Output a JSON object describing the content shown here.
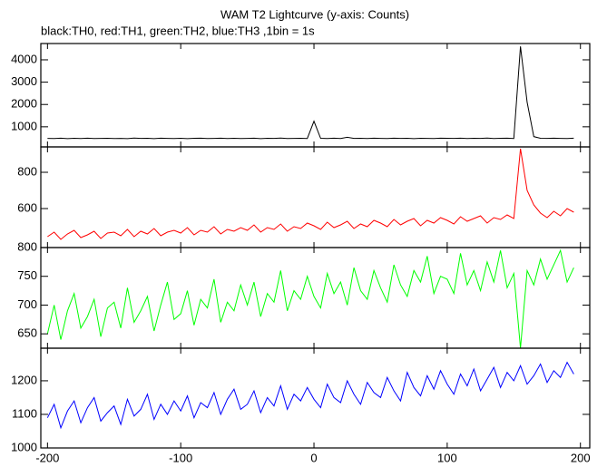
{
  "chart_data": [
    {
      "type": "line",
      "title": "WAM T2 Lightcurve (y-axis: Counts)",
      "subtitle": "black:TH0, red:TH1, green:TH2, blue:TH3 ,1bin = 1s",
      "x": [
        -200,
        -195,
        -190,
        -185,
        -180,
        -175,
        -170,
        -165,
        -160,
        -155,
        -150,
        -145,
        -140,
        -135,
        -130,
        -125,
        -120,
        -115,
        -110,
        -105,
        -100,
        -95,
        -90,
        -85,
        -80,
        -75,
        -70,
        -65,
        -60,
        -55,
        -50,
        -45,
        -40,
        -35,
        -30,
        -25,
        -20,
        -15,
        -10,
        -5,
        0,
        5,
        10,
        15,
        20,
        25,
        30,
        35,
        40,
        45,
        50,
        55,
        60,
        65,
        70,
        75,
        80,
        85,
        90,
        95,
        100,
        105,
        110,
        115,
        120,
        125,
        130,
        135,
        140,
        145,
        150,
        155,
        160,
        165,
        170,
        175,
        180,
        185,
        190,
        195
      ],
      "series": [
        {
          "color": "#000000",
          "values": [
            480,
            475,
            490,
            470,
            485,
            478,
            492,
            474,
            481,
            488,
            476,
            483,
            470,
            495,
            479,
            486,
            473,
            490,
            482,
            477,
            488,
            471,
            484,
            493,
            476,
            480,
            489,
            474,
            485,
            478,
            483,
            490,
            472,
            486,
            479,
            494,
            475,
            481,
            488,
            477,
            1250,
            484,
            478,
            491,
            476,
            530,
            482,
            487,
            475,
            490,
            481,
            476,
            493,
            479,
            486,
            472,
            488,
            483,
            477,
            492,
            485,
            479,
            490,
            474,
            487,
            481,
            495,
            478,
            484,
            489,
            476,
            4600,
            2100,
            560,
            488,
            479,
            492,
            483,
            476,
            490
          ]
        }
      ],
      "xlim": [
        -205,
        207
      ],
      "xticks": [
        -200,
        -100,
        0,
        100,
        200
      ],
      "ylim": [
        100,
        4730
      ],
      "yticks": [
        1000,
        2000,
        3000,
        4000
      ]
    },
    {
      "type": "line",
      "x": [
        -200,
        -195,
        -190,
        -185,
        -180,
        -175,
        -170,
        -165,
        -160,
        -155,
        -150,
        -145,
        -140,
        -135,
        -130,
        -125,
        -120,
        -115,
        -110,
        -105,
        -100,
        -95,
        -90,
        -85,
        -80,
        -75,
        -70,
        -65,
        -60,
        -55,
        -50,
        -45,
        -40,
        -35,
        -30,
        -25,
        -20,
        -15,
        -10,
        -5,
        0,
        5,
        10,
        15,
        20,
        25,
        30,
        35,
        40,
        45,
        50,
        55,
        60,
        65,
        70,
        75,
        80,
        85,
        90,
        95,
        100,
        105,
        110,
        115,
        120,
        125,
        130,
        135,
        140,
        145,
        150,
        155,
        160,
        165,
        170,
        175,
        180,
        185,
        190,
        195
      ],
      "series": [
        {
          "color": "#ff0000",
          "values": [
            445,
            470,
            430,
            460,
            480,
            440,
            455,
            475,
            435,
            465,
            470,
            450,
            485,
            445,
            475,
            460,
            490,
            450,
            470,
            480,
            465,
            495,
            455,
            480,
            470,
            500,
            460,
            485,
            475,
            495,
            480,
            510,
            470,
            495,
            485,
            515,
            475,
            500,
            490,
            520,
            505,
            485,
            525,
            495,
            510,
            530,
            490,
            515,
            500,
            535,
            520,
            500,
            540,
            510,
            530,
            545,
            505,
            535,
            520,
            550,
            535,
            515,
            555,
            530,
            545,
            560,
            520,
            550,
            540,
            565,
            545,
            930,
            700,
            620,
            575,
            550,
            585,
            560,
            600,
            580
          ]
        }
      ],
      "xlim": [
        -205,
        207
      ],
      "xticks": [
        -200,
        -100,
        0,
        100,
        200
      ],
      "ylim": [
        385,
        940
      ],
      "yticks": [
        600,
        800
      ]
    },
    {
      "type": "line",
      "x": [
        -200,
        -195,
        -190,
        -185,
        -180,
        -175,
        -170,
        -165,
        -160,
        -155,
        -150,
        -145,
        -140,
        -135,
        -130,
        -125,
        -120,
        -115,
        -110,
        -105,
        -100,
        -95,
        -90,
        -85,
        -80,
        -75,
        -70,
        -65,
        -60,
        -55,
        -50,
        -45,
        -40,
        -35,
        -30,
        -25,
        -20,
        -15,
        -10,
        -5,
        0,
        5,
        10,
        15,
        20,
        25,
        30,
        35,
        40,
        45,
        50,
        55,
        60,
        65,
        70,
        75,
        80,
        85,
        90,
        95,
        100,
        105,
        110,
        115,
        120,
        125,
        130,
        135,
        140,
        145,
        150,
        155,
        160,
        165,
        170,
        175,
        180,
        185,
        190,
        195
      ],
      "series": [
        {
          "color": "#00ff00",
          "values": [
            650,
            700,
            640,
            690,
            720,
            660,
            680,
            710,
            645,
            695,
            705,
            660,
            730,
            670,
            690,
            715,
            655,
            700,
            740,
            675,
            685,
            725,
            665,
            710,
            695,
            745,
            670,
            705,
            690,
            735,
            700,
            740,
            680,
            720,
            705,
            760,
            690,
            725,
            710,
            750,
            715,
            695,
            755,
            720,
            740,
            700,
            765,
            725,
            710,
            760,
            730,
            705,
            770,
            735,
            715,
            760,
            740,
            785,
            720,
            750,
            745,
            720,
            790,
            735,
            760,
            725,
            775,
            740,
            795,
            730,
            755,
            625,
            760,
            735,
            780,
            745,
            770,
            795,
            740,
            765
          ]
        }
      ],
      "xlim": [
        -205,
        207
      ],
      "xticks": [
        -200,
        -100,
        0,
        100,
        200
      ],
      "ylim": [
        625,
        800
      ],
      "yticks": [
        650,
        700,
        750,
        800
      ]
    },
    {
      "type": "line",
      "x": [
        -200,
        -195,
        -190,
        -185,
        -180,
        -175,
        -170,
        -165,
        -160,
        -155,
        -150,
        -145,
        -140,
        -135,
        -130,
        -125,
        -120,
        -115,
        -110,
        -105,
        -100,
        -95,
        -90,
        -85,
        -80,
        -75,
        -70,
        -65,
        -60,
        -55,
        -50,
        -45,
        -40,
        -35,
        -30,
        -25,
        -20,
        -15,
        -10,
        -5,
        0,
        5,
        10,
        15,
        20,
        25,
        30,
        35,
        40,
        45,
        50,
        55,
        60,
        65,
        70,
        75,
        80,
        85,
        90,
        95,
        100,
        105,
        110,
        115,
        120,
        125,
        130,
        135,
        140,
        145,
        150,
        155,
        160,
        165,
        170,
        175,
        180,
        185,
        190,
        195
      ],
      "series": [
        {
          "color": "#0000ff",
          "values": [
            1090,
            1130,
            1060,
            1110,
            1140,
            1075,
            1120,
            1150,
            1080,
            1105,
            1125,
            1070,
            1145,
            1095,
            1115,
            1160,
            1085,
            1130,
            1100,
            1140,
            1110,
            1155,
            1090,
            1135,
            1120,
            1165,
            1100,
            1145,
            1175,
            1115,
            1130,
            1170,
            1105,
            1150,
            1125,
            1185,
            1115,
            1160,
            1140,
            1180,
            1145,
            1120,
            1190,
            1150,
            1135,
            1200,
            1160,
            1130,
            1195,
            1165,
            1150,
            1210,
            1170,
            1140,
            1225,
            1180,
            1155,
            1215,
            1175,
            1230,
            1190,
            1160,
            1220,
            1185,
            1235,
            1170,
            1205,
            1240,
            1180,
            1225,
            1200,
            1245,
            1190,
            1215,
            1250,
            1195,
            1230,
            1210,
            1255,
            1220
          ]
        }
      ],
      "xlim": [
        -205,
        207
      ],
      "xticks": [
        -200,
        -100,
        0,
        100,
        200
      ],
      "ylim": [
        1000,
        1297
      ],
      "yticks": [
        1000,
        1100,
        1200
      ]
    }
  ]
}
